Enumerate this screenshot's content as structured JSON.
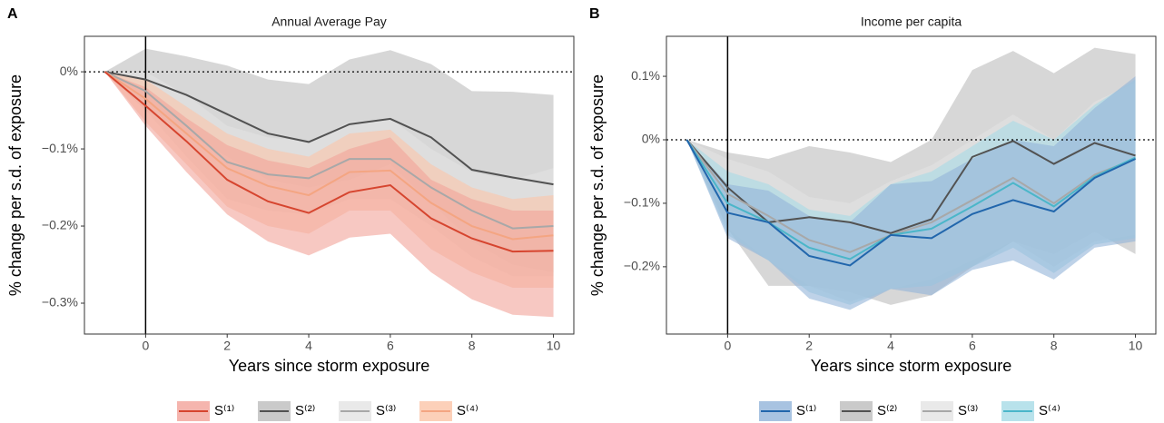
{
  "chart_data": [
    {
      "type": "line",
      "panel_label": "A",
      "title": "Annual Average Pay",
      "x_label": "Years since storm exposure",
      "y_label": "% change per s.d. of exposure",
      "x": [
        -1,
        0,
        1,
        2,
        3,
        4,
        5,
        6,
        7,
        8,
        9,
        10
      ],
      "xlim": [
        -1.5,
        10.5
      ],
      "xticks": [
        0,
        2,
        4,
        6,
        8,
        10
      ],
      "ylim": [
        -0.34,
        0.046
      ],
      "yticks": [
        {
          "value": 0,
          "label": "0%"
        },
        {
          "value": -0.1,
          "label": "−0.1%"
        },
        {
          "value": -0.2,
          "label": "−0.2%"
        },
        {
          "value": -0.3,
          "label": "−0.3%"
        }
      ],
      "vline": 0,
      "hline": 0,
      "series": [
        {
          "name": "S⁽²⁾",
          "color": "#525252",
          "fill": "#bdbdbd",
          "values": [
            0,
            -0.01,
            -0.03,
            -0.055,
            -0.08,
            -0.091,
            -0.068,
            -0.061,
            -0.085,
            -0.127,
            -0.137,
            -0.146
          ],
          "upper": [
            0,
            0.03,
            0.02,
            0.008,
            -0.01,
            -0.016,
            0.016,
            0.028,
            0.01,
            -0.025,
            -0.026,
            -0.03
          ],
          "lower": [
            0,
            -0.05,
            -0.08,
            -0.11,
            -0.14,
            -0.15,
            -0.14,
            -0.12,
            -0.17,
            -0.22,
            -0.25,
            -0.26
          ]
        },
        {
          "name": "S⁽³⁾",
          "color": "#a8a8a8",
          "fill": "#e3e3e3",
          "values": [
            0,
            -0.025,
            -0.07,
            -0.117,
            -0.133,
            -0.138,
            -0.113,
            -0.113,
            -0.15,
            -0.18,
            -0.203,
            -0.2
          ],
          "upper": [
            0,
            0,
            -0.03,
            -0.07,
            -0.085,
            -0.09,
            -0.065,
            -0.06,
            -0.1,
            -0.13,
            -0.14,
            -0.125
          ],
          "lower": [
            0,
            -0.05,
            -0.11,
            -0.165,
            -0.18,
            -0.185,
            -0.165,
            -0.165,
            -0.2,
            -0.24,
            -0.265,
            -0.265
          ]
        },
        {
          "name": "S⁽⁴⁾",
          "color": "#f4a582",
          "fill": "#fbc4a8",
          "values": [
            0,
            -0.035,
            -0.08,
            -0.125,
            -0.148,
            -0.16,
            -0.13,
            -0.128,
            -0.17,
            -0.2,
            -0.217,
            -0.212
          ],
          "upper": [
            0,
            -0.01,
            -0.045,
            -0.08,
            -0.1,
            -0.11,
            -0.08,
            -0.075,
            -0.12,
            -0.15,
            -0.165,
            -0.16
          ],
          "lower": [
            0,
            -0.065,
            -0.12,
            -0.175,
            -0.2,
            -0.21,
            -0.18,
            -0.18,
            -0.23,
            -0.26,
            -0.28,
            -0.28
          ]
        },
        {
          "name": "S⁽¹⁾",
          "color": "#d6452f",
          "fill": "#f2a39a",
          "values": [
            0,
            -0.044,
            -0.09,
            -0.14,
            -0.168,
            -0.183,
            -0.156,
            -0.147,
            -0.19,
            -0.216,
            -0.233,
            -0.232
          ],
          "upper": [
            0,
            -0.02,
            -0.06,
            -0.095,
            -0.115,
            -0.125,
            -0.1,
            -0.085,
            -0.14,
            -0.165,
            -0.18,
            -0.18
          ],
          "lower": [
            0,
            -0.07,
            -0.13,
            -0.185,
            -0.22,
            -0.238,
            -0.215,
            -0.21,
            -0.26,
            -0.295,
            -0.315,
            -0.318
          ]
        }
      ],
      "legend_order": [
        3,
        0,
        1,
        2
      ]
    },
    {
      "type": "line",
      "panel_label": "B",
      "title": "Income per capita",
      "x_label": "Years since storm exposure",
      "y_label": "% change per s.d. of exposure",
      "x": [
        -1,
        0,
        1,
        2,
        3,
        4,
        5,
        6,
        7,
        8,
        9,
        10
      ],
      "xlim": [
        -1.5,
        10.5
      ],
      "xticks": [
        0,
        2,
        4,
        6,
        8,
        10
      ],
      "ylim": [
        -0.306,
        0.163
      ],
      "yticks": [
        {
          "value": 0.1,
          "label": "0.1%"
        },
        {
          "value": 0,
          "label": "0%"
        },
        {
          "value": -0.1,
          "label": "−0.1%"
        },
        {
          "value": -0.2,
          "label": "−0.2%"
        }
      ],
      "vline": 0,
      "hline": 0,
      "series": [
        {
          "name": "S⁽²⁾",
          "color": "#525252",
          "fill": "#bdbdbd",
          "values": [
            0,
            -0.075,
            -0.13,
            -0.122,
            -0.13,
            -0.147,
            -0.125,
            -0.027,
            -0.002,
            -0.038,
            -0.005,
            -0.025
          ],
          "upper": [
            0,
            -0.02,
            -0.03,
            -0.01,
            -0.02,
            -0.035,
            0,
            0.11,
            0.14,
            0.105,
            0.145,
            0.135
          ],
          "lower": [
            0,
            -0.14,
            -0.23,
            -0.23,
            -0.24,
            -0.26,
            -0.245,
            -0.2,
            -0.16,
            -0.18,
            -0.145,
            -0.18
          ]
        },
        {
          "name": "S⁽³⁾",
          "color": "#a8a8a8",
          "fill": "#e3e3e3",
          "values": [
            0,
            -0.085,
            -0.12,
            -0.158,
            -0.177,
            -0.15,
            -0.13,
            -0.095,
            -0.06,
            -0.1,
            -0.055,
            -0.03
          ],
          "upper": [
            0,
            -0.03,
            -0.05,
            -0.09,
            -0.1,
            -0.065,
            -0.04,
            0,
            0.04,
            0,
            0.06,
            0.09
          ],
          "lower": [
            0,
            -0.14,
            -0.19,
            -0.23,
            -0.255,
            -0.235,
            -0.22,
            -0.19,
            -0.16,
            -0.2,
            -0.16,
            -0.15
          ]
        },
        {
          "name": "S⁽⁴⁾",
          "color": "#4bb6c9",
          "fill": "#a6dbe6",
          "values": [
            0,
            -0.1,
            -0.13,
            -0.17,
            -0.188,
            -0.15,
            -0.14,
            -0.105,
            -0.068,
            -0.105,
            -0.058,
            -0.028
          ],
          "upper": [
            0,
            -0.05,
            -0.07,
            -0.11,
            -0.12,
            -0.07,
            -0.05,
            -0.01,
            0.03,
            0,
            0.055,
            0.095
          ],
          "lower": [
            0,
            -0.15,
            -0.19,
            -0.24,
            -0.26,
            -0.235,
            -0.23,
            -0.2,
            -0.17,
            -0.21,
            -0.165,
            -0.155
          ]
        },
        {
          "name": "S⁽¹⁾",
          "color": "#2166ac",
          "fill": "#92b4d9",
          "values": [
            0,
            -0.115,
            -0.13,
            -0.183,
            -0.198,
            -0.15,
            -0.155,
            -0.117,
            -0.095,
            -0.113,
            -0.06,
            -0.03
          ],
          "upper": [
            0,
            -0.07,
            -0.08,
            -0.12,
            -0.13,
            -0.07,
            -0.065,
            -0.03,
            0,
            -0.01,
            0.05,
            0.1
          ],
          "lower": [
            0,
            -0.155,
            -0.19,
            -0.25,
            -0.268,
            -0.235,
            -0.245,
            -0.205,
            -0.19,
            -0.22,
            -0.17,
            -0.16
          ]
        }
      ],
      "legend_order": [
        3,
        0,
        1,
        2
      ]
    }
  ]
}
